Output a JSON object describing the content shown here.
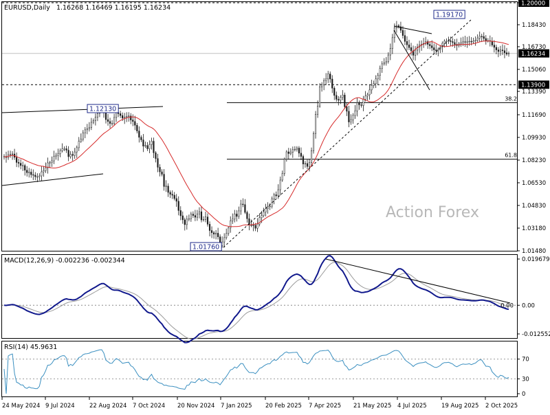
{
  "chart_data": [
    {
      "type": "candlestick",
      "title": "EURUSD,Daily",
      "ohlc_header": "1.16268 1.16469 1.16195 1.16234",
      "watermark": "Action Forex",
      "ylim": [
        1.0148,
        1.2
      ],
      "y_ticks": [
        "1.20000",
        "1.18430",
        "1.16730",
        "1.15060",
        "1.13390",
        "1.11690",
        "1.09930",
        "1.08230",
        "1.06530",
        "1.04830",
        "1.03180",
        "1.01480"
      ],
      "x_ticks": [
        "24 May 2024",
        "9 Jul 2024",
        "22 Aug 2024",
        "7 Oct 2024",
        "20 Nov 2024",
        "7 Jan 2025",
        "20 Feb 2025",
        "7 Apr 2025",
        "21 May 2025",
        "4 Jul 2025",
        "19 Aug 2025",
        "2 Oct 2025"
      ],
      "last_price": "1.16234",
      "level_1139": "1.13900",
      "level_12": "1.20000",
      "fib_382": "38.2",
      "fib_618": "61.8",
      "fib_382_value": 1.1256,
      "fib_618_value": 1.0835,
      "annotations": [
        "1.12130",
        "1.01760",
        "1.19170"
      ],
      "close": [
        1.0855,
        1.0848,
        1.0869,
        1.0872,
        1.0874,
        1.0849,
        1.0811,
        1.0805,
        1.0788,
        1.0788,
        1.0753,
        1.0735,
        1.0739,
        1.072,
        1.0716,
        1.0705,
        1.0705,
        1.0711,
        1.0741,
        1.075,
        1.0771,
        1.0808,
        1.0809,
        1.0823,
        1.0856,
        1.0864,
        1.0877,
        1.0898,
        1.0912,
        1.0913,
        1.0902,
        1.0854,
        1.0871,
        1.0863,
        1.0889,
        1.0921,
        1.0968,
        1.0984,
        1.1032,
        1.1054,
        1.1061,
        1.1072,
        1.111,
        1.1124,
        1.1148,
        1.1176,
        1.1206,
        1.1207,
        1.1186,
        1.113,
        1.1116,
        1.1101,
        1.1102,
        1.1146,
        1.1183,
        1.1174,
        1.116,
        1.1141,
        1.1148,
        1.1154,
        1.1157,
        1.1127,
        1.1116,
        1.1088,
        1.1045,
        1.0998,
        1.0979,
        1.0932,
        1.0937,
        1.0913,
        1.0944,
        1.0969,
        1.0883,
        1.084,
        1.0775,
        1.0741,
        1.0723,
        1.0632,
        1.0635,
        1.0588,
        1.0574,
        1.0567,
        1.0542,
        1.0522,
        1.0453,
        1.0414,
        1.0384,
        1.0348,
        1.0389,
        1.0392,
        1.0426,
        1.0416,
        1.0403,
        1.0426,
        1.0444,
        1.0383,
        1.0387,
        1.0405,
        1.0351,
        1.0304,
        1.0288,
        1.0277,
        1.0284,
        1.0257,
        1.019,
        1.0219,
        1.0251,
        1.0282,
        1.0323,
        1.0376,
        1.0389,
        1.0427,
        1.0409,
        1.045,
        1.0501,
        1.0497,
        1.0439,
        1.0392,
        1.0345,
        1.0344,
        1.0343,
        1.0321,
        1.0352,
        1.04,
        1.0415,
        1.0442,
        1.0467,
        1.0484,
        1.0485,
        1.0539,
        1.057,
        1.0563,
        1.0608,
        1.068,
        1.0729,
        1.0835,
        1.089,
        1.0877,
        1.0888,
        1.0906,
        1.0909,
        1.0918,
        1.088,
        1.0856,
        1.0799,
        1.0803,
        1.0781,
        1.0811,
        1.0899,
        1.1027,
        1.117,
        1.1231,
        1.1374,
        1.1389,
        1.1421,
        1.1433,
        1.147,
        1.1432,
        1.1364,
        1.131,
        1.1281,
        1.1274,
        1.1296,
        1.1313,
        1.1226,
        1.1192,
        1.1112,
        1.1128,
        1.1161,
        1.1195,
        1.1256,
        1.124,
        1.1235,
        1.1281,
        1.1305,
        1.1315,
        1.1351,
        1.1385,
        1.1398,
        1.1433,
        1.1459,
        1.1511,
        1.1545,
        1.1552,
        1.1562,
        1.1611,
        1.1659,
        1.174,
        1.1814,
        1.1829,
        1.1822,
        1.1795,
        1.1756,
        1.1712,
        1.1687,
        1.1666,
        1.1643,
        1.1609,
        1.1647,
        1.167,
        1.1685,
        1.1691,
        1.1697,
        1.1711,
        1.169,
        1.168,
        1.1665,
        1.1649,
        1.1643,
        1.1653,
        1.167,
        1.1698,
        1.1714,
        1.1714,
        1.1718,
        1.1711,
        1.1704,
        1.169,
        1.1682,
        1.1693,
        1.1703,
        1.171,
        1.1708,
        1.1709,
        1.1713,
        1.1708,
        1.1715,
        1.1721,
        1.1737,
        1.175,
        1.1749,
        1.1734,
        1.1718,
        1.1718,
        1.1714,
        1.1685,
        1.1668,
        1.1649,
        1.1637,
        1.1648,
        1.1643,
        1.1628,
        1.1618,
        1.1623
      ],
      "sma_period": 20
    },
    {
      "type": "line",
      "title": "MACD(12,26,9) -0.002236 -0.002344",
      "ylim": [
        -0.014,
        0.0215
      ],
      "y_ticks": [
        "0.019679",
        "0.00",
        "-0.012552"
      ],
      "right_label": "0.00",
      "series": [
        {
          "name": "MACD"
        },
        {
          "name": "Signal"
        }
      ]
    },
    {
      "type": "line",
      "title": "RSI(14) 45.9631",
      "ylim": [
        0,
        100
      ],
      "y_ticks": [
        "70",
        "30",
        "0"
      ],
      "levels": [
        70,
        30
      ]
    }
  ]
}
